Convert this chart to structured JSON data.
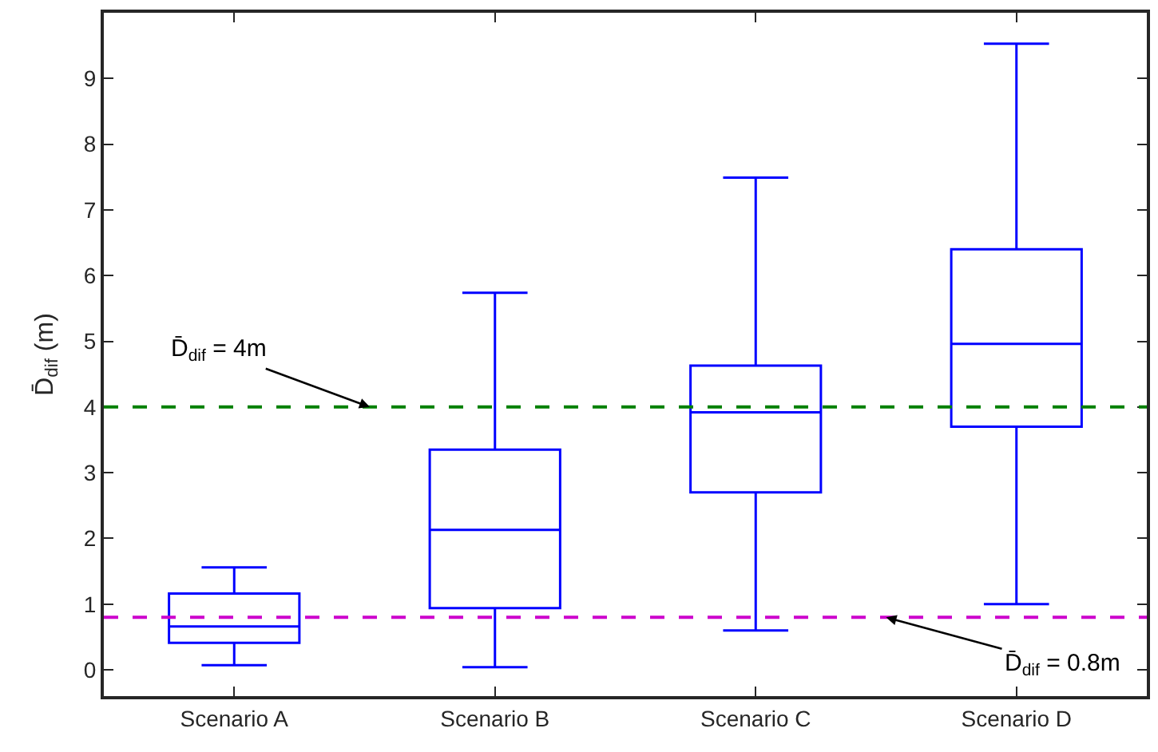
{
  "chart_data": {
    "type": "box",
    "ylabel": "D̄$_{dif}$ (m)",
    "categories": [
      "Scenario A",
      "Scenario B",
      "Scenario C",
      "Scenario D"
    ],
    "color": "#0000ff",
    "boxes": [
      {
        "low": 0.07,
        "q1": 0.41,
        "median": 0.66,
        "q3": 1.16,
        "high": 1.56
      },
      {
        "low": 0.04,
        "q1": 0.94,
        "median": 2.13,
        "q3": 3.35,
        "high": 5.74
      },
      {
        "low": 0.6,
        "q1": 2.7,
        "median": 3.92,
        "q3": 4.63,
        "high": 7.49
      },
      {
        "low": 1.0,
        "q1": 3.7,
        "median": 4.96,
        "q3": 6.4,
        "high": 9.53
      }
    ],
    "ylim": [
      -0.4,
      10
    ],
    "yticks": [
      0,
      1,
      2,
      3,
      4,
      5,
      6,
      7,
      8,
      9
    ],
    "ref_lines": [
      {
        "axis": "y",
        "value": 4,
        "label": "D̄$_{dif}$ = 4m",
        "color": "#008000",
        "line_style": "dashed"
      },
      {
        "axis": "y",
        "value": 0.8,
        "label": "D̄$_{dif}$ = 0.8m",
        "color": "#cc00cc",
        "line_style": "dashed"
      }
    ]
  }
}
